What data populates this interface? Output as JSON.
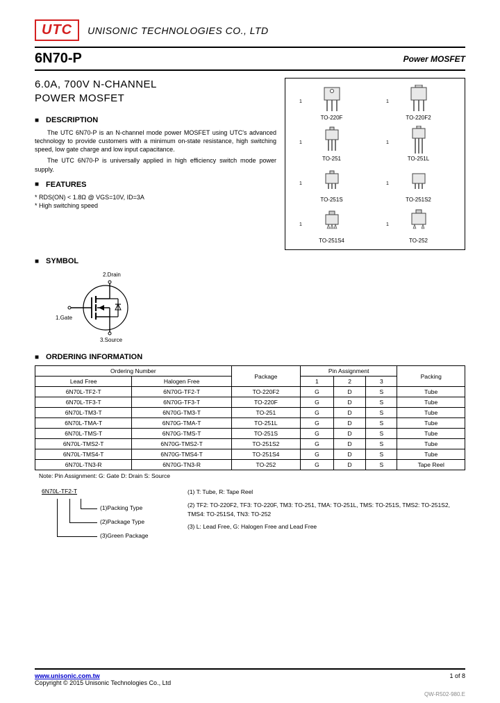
{
  "logo": "UTC",
  "company": "UNISONIC TECHNOLOGIES CO., LTD",
  "part_no": "6N70-P",
  "product_type": "Power MOSFET",
  "product_title_l1": "6.0A, 700V   N-CHANNEL",
  "product_title_l2": "POWER MOSFET",
  "sections": {
    "description": "DESCRIPTION",
    "features": "FEATURES",
    "symbol": "SYMBOL",
    "ordering": "ORDERING INFORMATION"
  },
  "desc1": "The UTC 6N70-P is an N-channel mode power MOSFET using UTC's advanced technology to provide customers with a minimum on-state resistance, high switching speed, low gate charge and low input capacitance.",
  "desc2": "The UTC 6N70-P is universally applied in high efficiency switch mode power supply.",
  "feat1": "* RDS(ON) < 1.8Ω @ VGS=10V, ID=3A",
  "feat2": "* High switching speed",
  "packages": [
    "TO-220F",
    "TO-220F2",
    "TO-251",
    "TO-251L",
    "TO-251S",
    "TO-251S2",
    "TO-251S4",
    "TO-252"
  ],
  "symbol_pins": {
    "gate": "1.Gate",
    "drain": "2.Drain",
    "source": "3.Source"
  },
  "table": {
    "head_ordering": "Ordering Number",
    "head_lead": "Lead Free",
    "head_halogen": "Halogen Free",
    "head_package": "Package",
    "head_pin": "Pin Assignment",
    "head_packing": "Packing",
    "pins": [
      "1",
      "2",
      "3"
    ],
    "rows": [
      [
        "6N70L-TF2-T",
        "6N70G-TF2-T",
        "TO-220F2",
        "G",
        "D",
        "S",
        "Tube"
      ],
      [
        "6N70L-TF3-T",
        "6N70G-TF3-T",
        "TO-220F",
        "G",
        "D",
        "S",
        "Tube"
      ],
      [
        "6N70L-TM3-T",
        "6N70G-TM3-T",
        "TO-251",
        "G",
        "D",
        "S",
        "Tube"
      ],
      [
        "6N70L-TMA-T",
        "6N70G-TMA-T",
        "TO-251L",
        "G",
        "D",
        "S",
        "Tube"
      ],
      [
        "6N70L-TMS-T",
        "6N70G-TMS-T",
        "TO-251S",
        "G",
        "D",
        "S",
        "Tube"
      ],
      [
        "6N70L-TMS2-T",
        "6N70G-TMS2-T",
        "TO-251S2",
        "G",
        "D",
        "S",
        "Tube"
      ],
      [
        "6N70L-TMS4-T",
        "6N70G-TMS4-T",
        "TO-251S4",
        "G",
        "D",
        "S",
        "Tube"
      ],
      [
        "6N70L-TN3-R",
        "6N70G-TN3-R",
        "TO-252",
        "G",
        "D",
        "S",
        "Tape Reel"
      ]
    ]
  },
  "note": "Note:    Pin Assignment: G: Gate      D: Drain      S: Source",
  "legend": {
    "part_example": "6N70L-TF2-T",
    "l1": "(1)Packing Type",
    "l2": "(2)Package Type",
    "l3": "(3)Green Package",
    "r1": "(1) T: Tube, R: Tape Reel",
    "r2": "(2) TF2: TO-220F2, TF3: TO-220F, TM3: TO-251, TMA: TO-251L, TMS: TO-251S, TMS2: TO-251S2, TMS4: TO-251S4, TN3: TO-252",
    "r3": "(3) L: Lead Free, G: Halogen Free and Lead Free"
  },
  "footer": {
    "url": "www.unisonic.com.tw",
    "copyright": "Copyright © 2015 Unisonic Technologies Co., Ltd",
    "page": "1 of 8",
    "code": "QW-R502-980.E"
  },
  "colors": {
    "utc_red": "#d42020"
  }
}
